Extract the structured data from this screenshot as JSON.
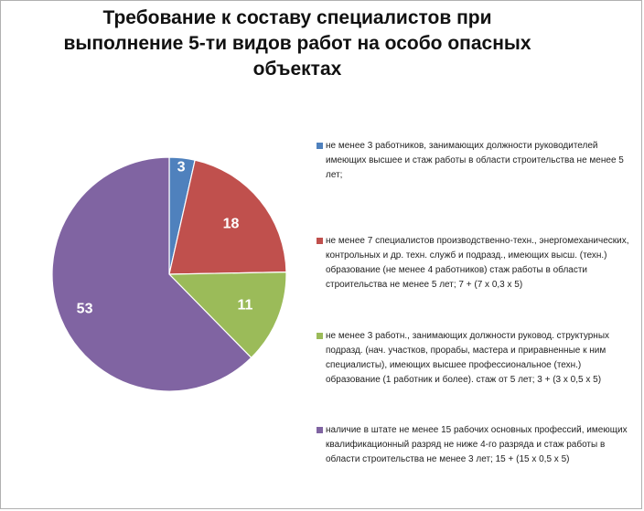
{
  "chart_data": {
    "type": "pie",
    "title": "Требование к составу специалистов при\nвыполнение 5-ти видов работ на особо опасных\nобъектах",
    "categories": [
      "не менее 3 работников, занимающих должности руководителей  имеющих высшее  и стаж работы в области строительства не менее 5 лет;",
      " не менее 7 специалистов производственно-техн., энергомеханических, контрольных и др. техн. служб и подразд., имеющих высш. (техн.) образование (не менее 4 работников) стаж работы в области строительства не менее 5 лет;  7 + (7 x 0,3 x 5)",
      "не менее 3 работн., занимающих должности руковод. структурных подразд. (нач. участков, прорабы, мастера и приравненные к ним специалисты), имеющих высшее профессиональное (техн.) образование (1 работник и более). стаж от 5 лет;  3 + (3 x 0,5 x 5)",
      "наличие в штате не менее 15 рабочих основных профессий, имеющих квалификационный разряд не ниже 4-го разряда и стаж работы в области строительства не менее 3 лет;     15 + (15 x 0,5 x 5)"
    ],
    "values": [
      3,
      18,
      11,
      53
    ],
    "data_labels": [
      "3",
      "18",
      "11",
      "53"
    ],
    "colors": [
      "#4f81bd",
      "#c0504d",
      "#9bbb59",
      "#8064a2"
    ],
    "legend_position": "right"
  }
}
